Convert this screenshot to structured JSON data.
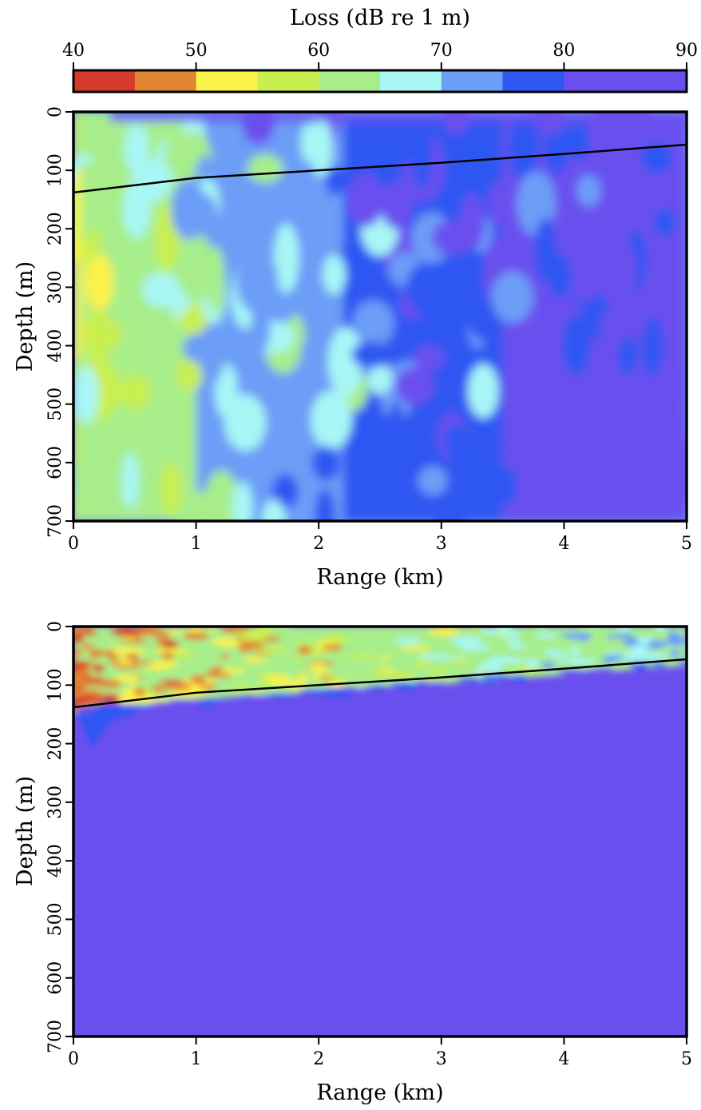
{
  "colorbar": {
    "title": "Loss (dB re 1 m)",
    "min": 40,
    "max": 90,
    "step": 5,
    "tick_labels": [
      "40",
      "50",
      "60",
      "70",
      "80",
      "90"
    ],
    "tick_values": [
      40,
      50,
      60,
      70,
      80,
      90
    ],
    "colors": [
      "#d63a2a",
      "#e08432",
      "#fbf24a",
      "#c9ef4f",
      "#a7ee8a",
      "#a8f7f5",
      "#6c9df7",
      "#2f57f2",
      "#6a4fef"
    ]
  },
  "chart_data": [
    {
      "type": "heatmap",
      "panel": "top",
      "xlabel": "Range (km)",
      "ylabel": "Depth (m)",
      "xlim": [
        0,
        5
      ],
      "ylim": [
        0,
        700
      ],
      "y_inverted": true,
      "xticks": [
        "0",
        "1",
        "2",
        "3",
        "4",
        "5"
      ],
      "yticks": [
        "0",
        "100",
        "200",
        "300",
        "400",
        "500",
        "600",
        "700"
      ],
      "value_range": [
        40,
        90
      ],
      "description_bands": [
        {
          "range_km": [
            0,
            0.05
          ],
          "loss_db": 55
        },
        {
          "range_km": [
            0.05,
            1.0
          ],
          "loss_db": 62
        },
        {
          "range_km": [
            1.0,
            2.2
          ],
          "loss_db": 72
        },
        {
          "range_km": [
            2.2,
            3.5
          ],
          "loss_db": 78
        },
        {
          "range_km": [
            3.5,
            5.0
          ],
          "loss_db": 83
        }
      ],
      "boundary_line": {
        "x": [
          0,
          1,
          2,
          3,
          4,
          5
        ],
        "y": [
          138,
          113,
          100,
          87,
          72,
          56
        ]
      }
    },
    {
      "type": "heatmap",
      "panel": "bottom",
      "xlabel": "Range (km)",
      "ylabel": "Depth (m)",
      "xlim": [
        0,
        5
      ],
      "ylim": [
        0,
        700
      ],
      "y_inverted": true,
      "xticks": [
        "0",
        "1",
        "2",
        "3",
        "4",
        "5"
      ],
      "yticks": [
        "0",
        "100",
        "200",
        "300",
        "400",
        "500",
        "600",
        "700"
      ],
      "value_range": [
        40,
        90
      ],
      "background_loss_db": 90,
      "boundary_line": {
        "x": [
          0,
          1,
          2,
          3,
          4,
          5
        ],
        "y": [
          138,
          113,
          100,
          87,
          72,
          56
        ]
      }
    }
  ]
}
